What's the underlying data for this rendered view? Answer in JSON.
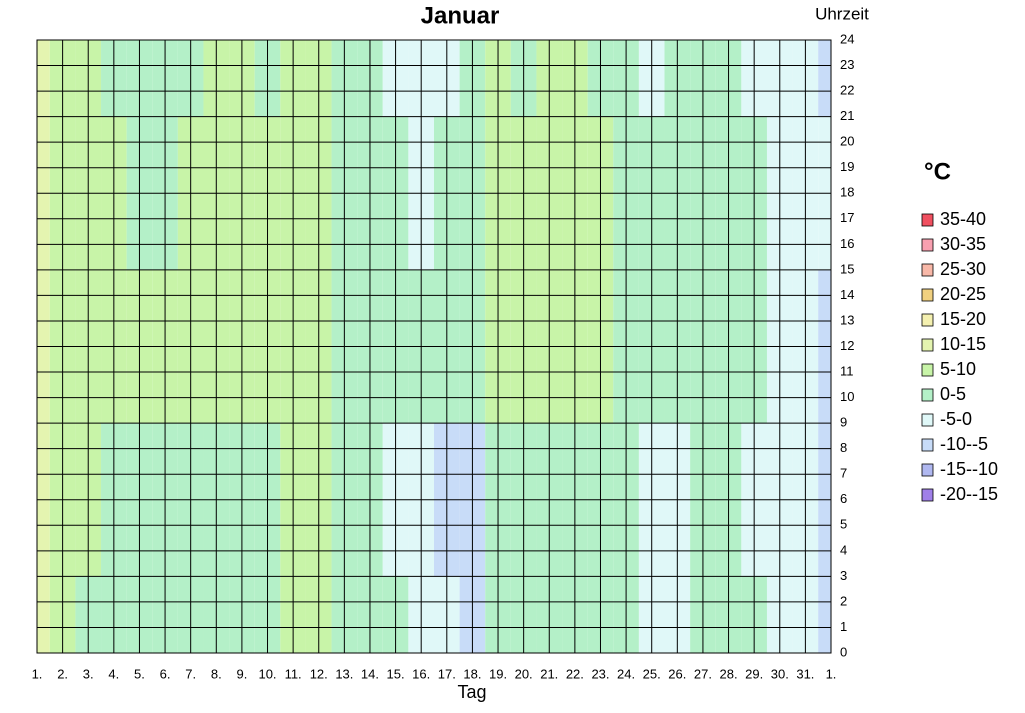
{
  "chart_data": {
    "type": "contour",
    "title": "Januar",
    "x_label": "Tag",
    "y_label": "Uhrzeit",
    "legend_title": "°C",
    "x": [
      "1.",
      "2.",
      "3.",
      "4.",
      "5.",
      "6.",
      "7.",
      "8.",
      "9.",
      "10.",
      "11.",
      "12.",
      "13.",
      "14.",
      "15.",
      "16.",
      "17.",
      "18.",
      "19.",
      "20.",
      "21.",
      "22.",
      "23.",
      "24.",
      "25.",
      "26.",
      "27.",
      "28.",
      "29.",
      "30.",
      "31.",
      "1."
    ],
    "y": [
      0,
      6,
      12,
      18,
      24
    ],
    "z": [
      [
        11,
        8,
        4,
        3,
        3,
        3,
        3,
        4,
        4,
        3,
        6,
        6,
        4,
        3,
        2,
        -2,
        -3,
        -7,
        2,
        2,
        3,
        3,
        1,
        0,
        -2,
        -1,
        2,
        2,
        0,
        -2,
        -3,
        -6
      ],
      [
        11,
        8,
        6,
        4,
        3,
        3,
        3,
        3,
        3,
        4,
        5,
        6,
        4,
        3,
        -1,
        -3,
        -7,
        -6,
        2,
        2,
        3,
        4,
        3,
        1,
        -3,
        -4,
        2,
        2,
        -1,
        -2,
        -3,
        -6
      ],
      [
        10,
        9,
        8,
        7,
        6,
        6,
        6,
        7,
        7,
        8,
        8,
        7,
        4,
        4,
        3,
        2,
        2,
        3,
        7,
        6,
        7,
        6,
        6,
        2,
        2,
        2,
        3,
        3,
        2,
        -2,
        -3,
        -7
      ],
      [
        10,
        8,
        7,
        5,
        4,
        4,
        6,
        7,
        7,
        7,
        7,
        6,
        3,
        2,
        2,
        -1,
        0,
        2,
        6,
        5,
        6,
        6,
        6,
        2,
        1,
        1,
        2,
        3,
        3,
        -1,
        -3,
        -4
      ],
      [
        10,
        8,
        7,
        4,
        3,
        3,
        4,
        6,
        6,
        4,
        6,
        6,
        3,
        2,
        -1,
        -2,
        -2,
        3,
        7,
        4,
        6,
        5,
        4,
        1,
        -1,
        1,
        2,
        3,
        -1,
        -3,
        -4,
        -6
      ]
    ],
    "ylim": [
      0,
      24
    ],
    "yticks": [
      0,
      1,
      2,
      3,
      4,
      5,
      6,
      7,
      8,
      9,
      10,
      11,
      12,
      13,
      14,
      15,
      16,
      17,
      18,
      19,
      20,
      21,
      22,
      23,
      24
    ],
    "grid": true,
    "levels": [
      {
        "label": "35-40",
        "from": 35,
        "to": 40,
        "color": "#f05060"
      },
      {
        "label": "30-35",
        "from": 30,
        "to": 35,
        "color": "#f8a0b0"
      },
      {
        "label": "25-30",
        "from": 25,
        "to": 30,
        "color": "#f8b8a8"
      },
      {
        "label": "20-25",
        "from": 20,
        "to": 25,
        "color": "#f0d080"
      },
      {
        "label": "15-20",
        "from": 15,
        "to": 20,
        "color": "#f4f0b0"
      },
      {
        "label": "10-15",
        "from": 10,
        "to": 15,
        "color": "#e4f4b0"
      },
      {
        "label": "5-10",
        "from": 5,
        "to": 10,
        "color": "#c8f4a8"
      },
      {
        "label": "0-5",
        "from": 0,
        "to": 5,
        "color": "#b4f0c8"
      },
      {
        "label": "-5-0",
        "from": -5,
        "to": 0,
        "color": "#e0f8f8"
      },
      {
        "label": "-10--5",
        "from": -10,
        "to": -5,
        "color": "#c8dcf8"
      },
      {
        "label": "-15--10",
        "from": -15,
        "to": -10,
        "color": "#b0b8f0"
      },
      {
        "label": "-20--15",
        "from": -20,
        "to": -15,
        "color": "#a080e8"
      }
    ]
  }
}
